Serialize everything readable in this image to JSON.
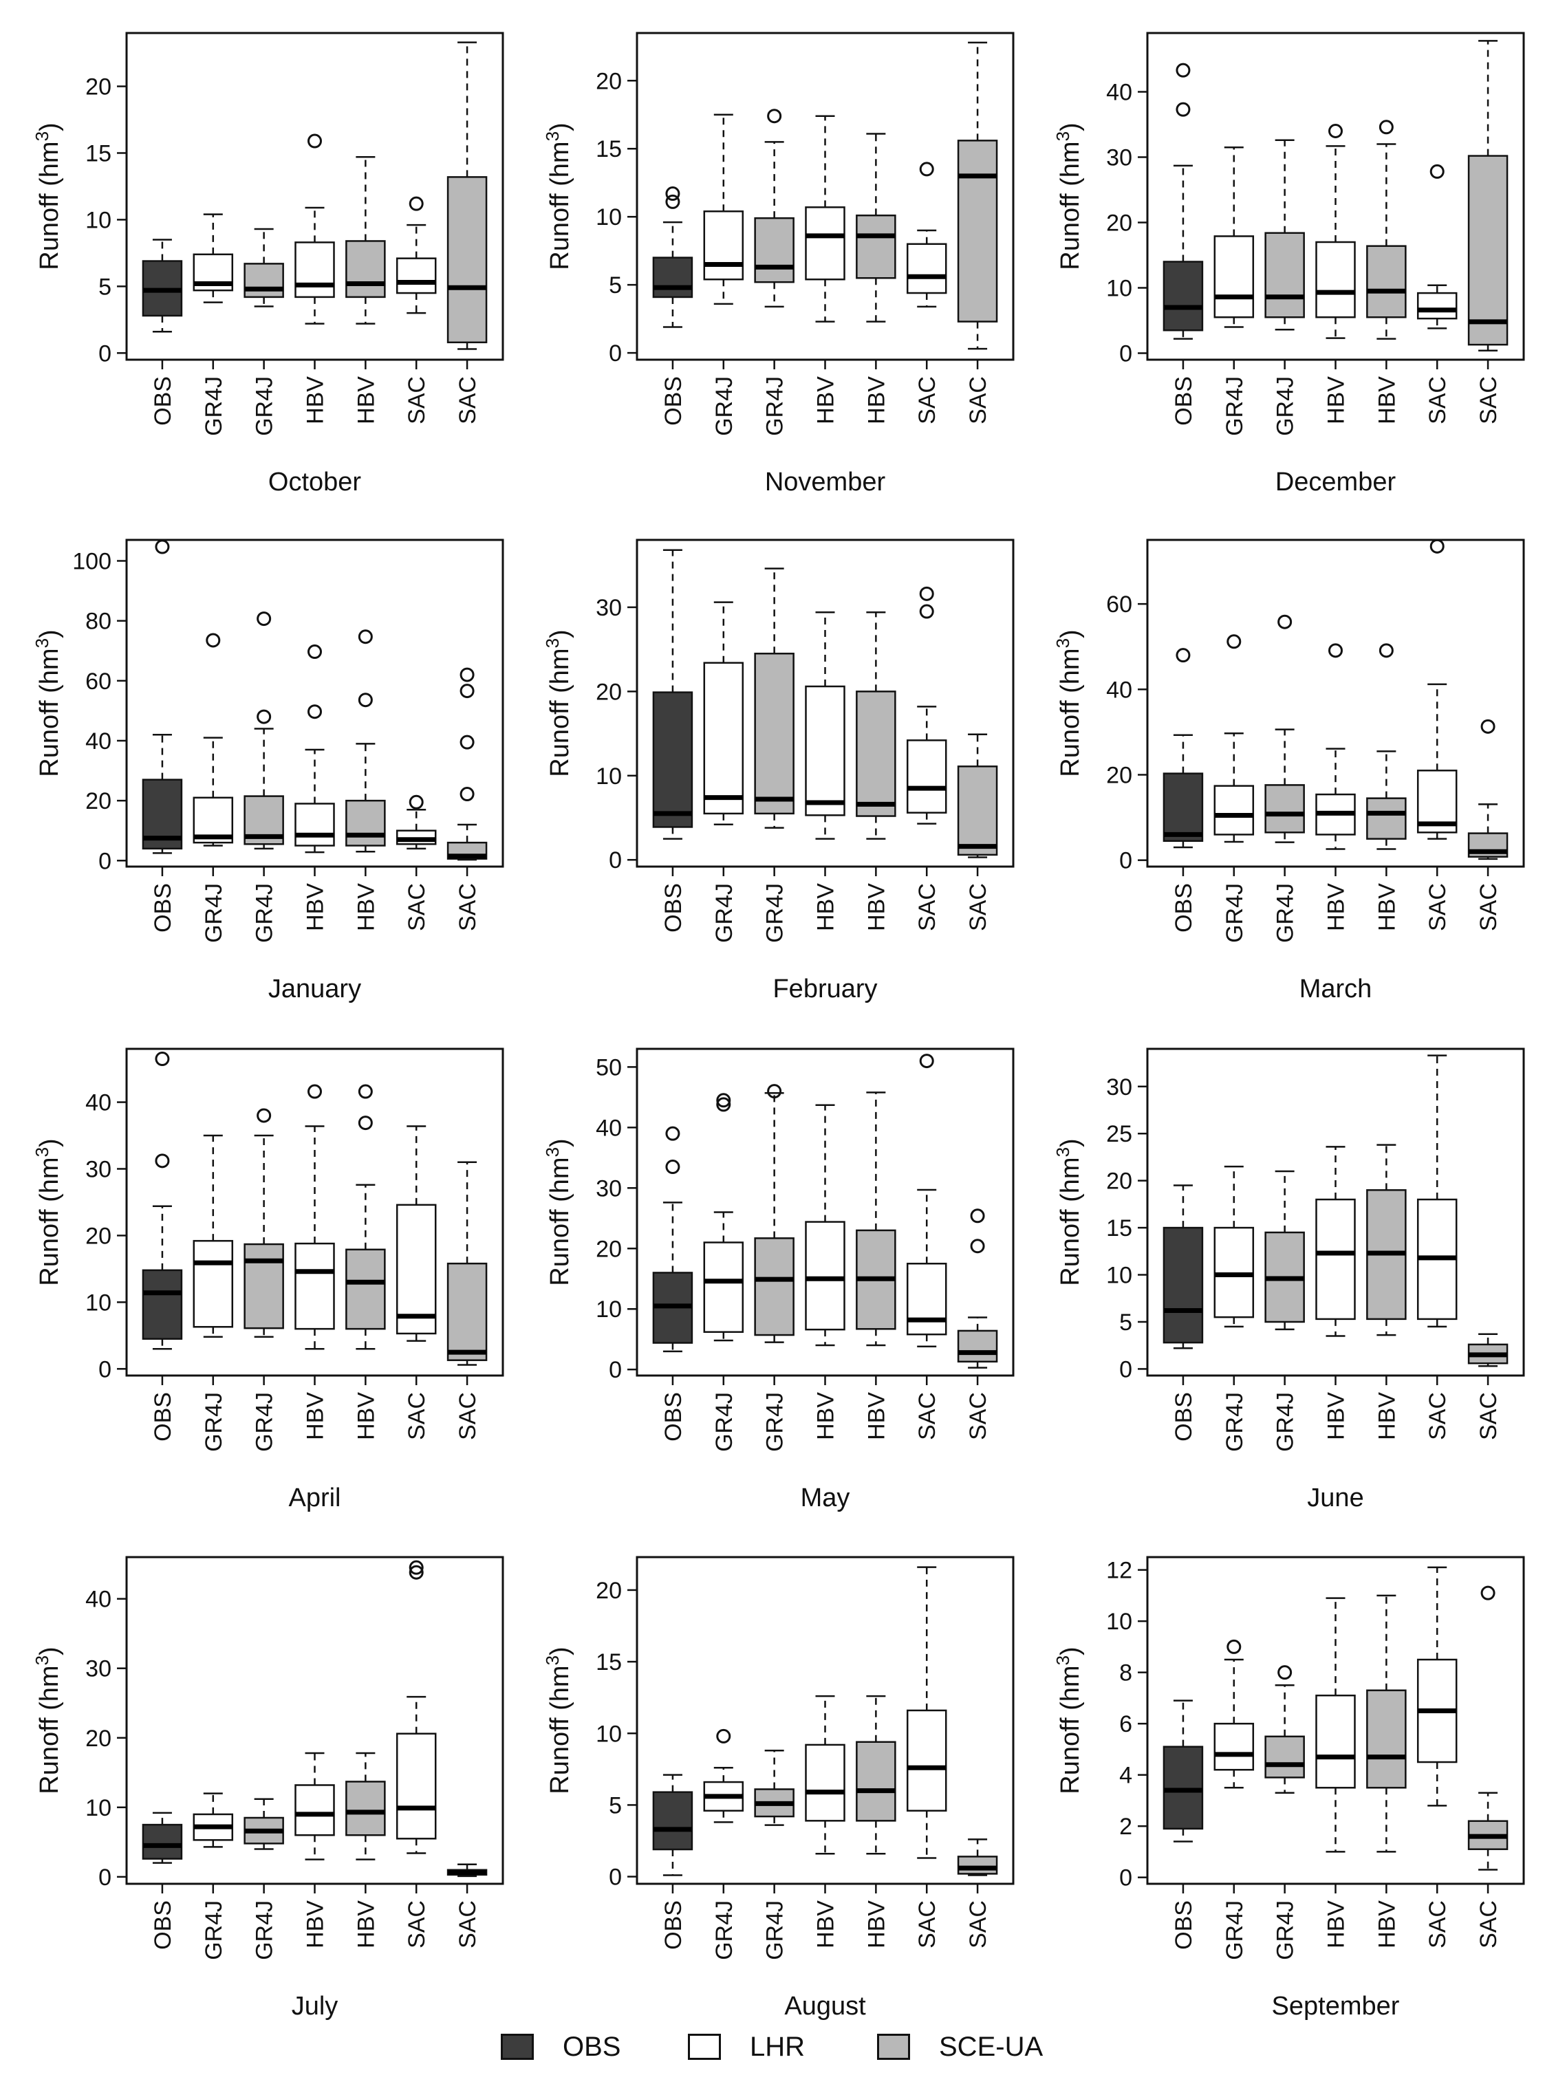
{
  "chart_data": {
    "type": "boxplot",
    "y_axis_label_prefix": "Runoff (hm",
    "y_axis_label_exp": "3",
    "y_axis_label_suffix": ")",
    "categories": [
      "OBS",
      "GR4J",
      "GR4J",
      "HBV",
      "HBV",
      "SAC",
      "SAC"
    ],
    "category_groups": [
      "OBS",
      "LHR",
      "SCE-UA",
      "LHR",
      "SCE-UA",
      "LHR",
      "SCE-UA"
    ],
    "colors": {
      "OBS": "#3d3d3d",
      "LHR": "#ffffff",
      "SCE-UA": "#b8b8b8"
    },
    "legend": [
      {
        "label": "OBS",
        "group": "OBS"
      },
      {
        "label": "LHR",
        "group": "LHR"
      },
      {
        "label": "SCE-UA",
        "group": "SCE-UA"
      }
    ],
    "panels": [
      {
        "title": "October",
        "ylim": [
          -0.5,
          24
        ],
        "yticks": [
          0,
          5,
          10,
          15,
          20
        ],
        "boxes": [
          {
            "min": 1.6,
            "q1": 2.8,
            "median": 4.7,
            "q3": 6.9,
            "max": 8.5,
            "outliers": []
          },
          {
            "min": 3.8,
            "q1": 4.7,
            "median": 5.2,
            "q3": 7.4,
            "max": 10.4,
            "outliers": []
          },
          {
            "min": 3.5,
            "q1": 4.2,
            "median": 4.8,
            "q3": 6.7,
            "max": 9.3,
            "outliers": []
          },
          {
            "min": 2.2,
            "q1": 4.2,
            "median": 5.1,
            "q3": 8.3,
            "max": 10.9,
            "outliers": [
              15.9
            ]
          },
          {
            "min": 2.2,
            "q1": 4.2,
            "median": 5.2,
            "q3": 8.4,
            "max": 14.7,
            "outliers": []
          },
          {
            "min": 3.0,
            "q1": 4.5,
            "median": 5.3,
            "q3": 7.1,
            "max": 9.6,
            "outliers": [
              11.2
            ]
          },
          {
            "min": 0.3,
            "q1": 0.8,
            "median": 4.9,
            "q3": 13.2,
            "max": 23.3,
            "outliers": []
          }
        ]
      },
      {
        "title": "November",
        "ylim": [
          -0.5,
          23.5
        ],
        "yticks": [
          0,
          5,
          10,
          15,
          20
        ],
        "boxes": [
          {
            "min": 1.9,
            "q1": 4.1,
            "median": 4.8,
            "q3": 7.0,
            "max": 9.6,
            "outliers": [
              11.1,
              11.7
            ]
          },
          {
            "min": 3.6,
            "q1": 5.4,
            "median": 6.5,
            "q3": 10.4,
            "max": 17.5,
            "outliers": []
          },
          {
            "min": 3.4,
            "q1": 5.2,
            "median": 6.3,
            "q3": 9.9,
            "max": 15.5,
            "outliers": [
              17.4
            ]
          },
          {
            "min": 2.3,
            "q1": 5.4,
            "median": 8.6,
            "q3": 10.7,
            "max": 17.4,
            "outliers": []
          },
          {
            "min": 2.3,
            "q1": 5.5,
            "median": 8.6,
            "q3": 10.1,
            "max": 16.1,
            "outliers": []
          },
          {
            "min": 3.4,
            "q1": 4.4,
            "median": 5.6,
            "q3": 8.0,
            "max": 9.0,
            "outliers": [
              13.5
            ]
          },
          {
            "min": 0.3,
            "q1": 2.3,
            "median": 13.0,
            "q3": 15.6,
            "max": 22.8,
            "outliers": []
          }
        ]
      },
      {
        "title": "December",
        "ylim": [
          -1,
          49
        ],
        "yticks": [
          0,
          10,
          20,
          30,
          40
        ],
        "boxes": [
          {
            "min": 2.2,
            "q1": 3.5,
            "median": 7.0,
            "q3": 14.0,
            "max": 28.7,
            "outliers": [
              37.3,
              43.3
            ]
          },
          {
            "min": 4.0,
            "q1": 5.5,
            "median": 8.6,
            "q3": 17.9,
            "max": 31.5,
            "outliers": []
          },
          {
            "min": 3.6,
            "q1": 5.5,
            "median": 8.6,
            "q3": 18.4,
            "max": 32.6,
            "outliers": []
          },
          {
            "min": 2.3,
            "q1": 5.5,
            "median": 9.3,
            "q3": 17.0,
            "max": 31.7,
            "outliers": [
              34.0
            ]
          },
          {
            "min": 2.2,
            "q1": 5.5,
            "median": 9.5,
            "q3": 16.4,
            "max": 32.0,
            "outliers": [
              34.6
            ]
          },
          {
            "min": 3.8,
            "q1": 5.3,
            "median": 6.6,
            "q3": 9.2,
            "max": 10.4,
            "outliers": [
              27.8
            ]
          },
          {
            "min": 0.4,
            "q1": 1.3,
            "median": 4.8,
            "q3": 30.2,
            "max": 47.8,
            "outliers": []
          }
        ]
      },
      {
        "title": "January",
        "ylim": [
          -2,
          107
        ],
        "yticks": [
          0,
          20,
          40,
          60,
          80,
          100
        ],
        "boxes": [
          {
            "min": 2.5,
            "q1": 4.0,
            "median": 7.5,
            "q3": 27.0,
            "max": 42.0,
            "outliers": [
              104.7
            ]
          },
          {
            "min": 5.0,
            "q1": 6.0,
            "median": 7.9,
            "q3": 21.0,
            "max": 41.0,
            "outliers": [
              73.5
            ]
          },
          {
            "min": 4.0,
            "q1": 5.5,
            "median": 8.0,
            "q3": 21.5,
            "max": 44.0,
            "outliers": [
              48.0,
              80.7
            ]
          },
          {
            "min": 2.8,
            "q1": 5.0,
            "median": 8.5,
            "q3": 19.0,
            "max": 37.0,
            "outliers": [
              49.7,
              69.7
            ]
          },
          {
            "min": 3.0,
            "q1": 5.0,
            "median": 8.5,
            "q3": 20.0,
            "max": 39.0,
            "outliers": [
              53.6,
              74.7
            ]
          },
          {
            "min": 4.0,
            "q1": 5.5,
            "median": 7.0,
            "q3": 10.0,
            "max": 17.0,
            "outliers": [
              19.5
            ]
          },
          {
            "min": 0.3,
            "q1": 0.6,
            "median": 1.5,
            "q3": 6.0,
            "max": 12.0,
            "outliers": [
              22.2,
              39.5,
              56.6,
              62.0
            ]
          }
        ]
      },
      {
        "title": "February",
        "ylim": [
          -0.8,
          38
        ],
        "yticks": [
          0,
          10,
          20,
          30
        ],
        "boxes": [
          {
            "min": 2.5,
            "q1": 3.9,
            "median": 5.5,
            "q3": 19.9,
            "max": 36.8,
            "outliers": []
          },
          {
            "min": 4.2,
            "q1": 5.5,
            "median": 7.4,
            "q3": 23.4,
            "max": 30.6,
            "outliers": []
          },
          {
            "min": 3.8,
            "q1": 5.5,
            "median": 7.2,
            "q3": 24.5,
            "max": 34.6,
            "outliers": []
          },
          {
            "min": 2.5,
            "q1": 5.3,
            "median": 6.8,
            "q3": 20.6,
            "max": 29.4,
            "outliers": []
          },
          {
            "min": 2.5,
            "q1": 5.2,
            "median": 6.6,
            "q3": 20.0,
            "max": 29.4,
            "outliers": []
          },
          {
            "min": 4.3,
            "q1": 5.6,
            "median": 8.5,
            "q3": 14.2,
            "max": 18.2,
            "outliers": [
              29.5,
              31.6
            ]
          },
          {
            "min": 0.3,
            "q1": 0.6,
            "median": 1.6,
            "q3": 11.1,
            "max": 14.9,
            "outliers": []
          }
        ]
      },
      {
        "title": "March",
        "ylim": [
          -1.5,
          75
        ],
        "yticks": [
          0,
          20,
          40,
          60
        ],
        "boxes": [
          {
            "min": 3.0,
            "q1": 4.5,
            "median": 6.0,
            "q3": 20.3,
            "max": 29.3,
            "outliers": [
              48.0
            ]
          },
          {
            "min": 4.3,
            "q1": 6.0,
            "median": 10.5,
            "q3": 17.4,
            "max": 29.7,
            "outliers": [
              51.2
            ]
          },
          {
            "min": 4.2,
            "q1": 6.5,
            "median": 10.8,
            "q3": 17.6,
            "max": 30.6,
            "outliers": [
              55.8
            ]
          },
          {
            "min": 2.6,
            "q1": 6.0,
            "median": 11.0,
            "q3": 15.4,
            "max": 26.1,
            "outliers": [
              49.1
            ]
          },
          {
            "min": 2.6,
            "q1": 5.0,
            "median": 11.0,
            "q3": 14.5,
            "max": 25.5,
            "outliers": [
              49.1
            ]
          },
          {
            "min": 5.0,
            "q1": 6.5,
            "median": 8.5,
            "q3": 21.0,
            "max": 41.2,
            "outliers": [
              73.5
            ]
          },
          {
            "min": 0.3,
            "q1": 0.8,
            "median": 2.0,
            "q3": 6.3,
            "max": 13.1,
            "outliers": [
              31.3
            ]
          }
        ]
      },
      {
        "title": "April",
        "ylim": [
          -1,
          48
        ],
        "yticks": [
          0,
          10,
          20,
          30,
          40
        ],
        "boxes": [
          {
            "min": 3.0,
            "q1": 4.5,
            "median": 11.4,
            "q3": 14.8,
            "max": 24.4,
            "outliers": [
              31.2,
              46.5
            ]
          },
          {
            "min": 4.8,
            "q1": 6.3,
            "median": 15.9,
            "q3": 19.2,
            "max": 35.0,
            "outliers": []
          },
          {
            "min": 4.8,
            "q1": 6.1,
            "median": 16.2,
            "q3": 18.7,
            "max": 35.0,
            "outliers": [
              38.0
            ]
          },
          {
            "min": 3.0,
            "q1": 6.0,
            "median": 14.6,
            "q3": 18.8,
            "max": 36.4,
            "outliers": [
              41.6
            ]
          },
          {
            "min": 3.0,
            "q1": 6.0,
            "median": 13.0,
            "q3": 17.9,
            "max": 27.6,
            "outliers": [
              36.9,
              41.6
            ]
          },
          {
            "min": 4.2,
            "q1": 5.3,
            "median": 7.9,
            "q3": 24.6,
            "max": 36.4,
            "outliers": []
          },
          {
            "min": 0.6,
            "q1": 1.3,
            "median": 2.5,
            "q3": 15.8,
            "max": 31.0,
            "outliers": []
          }
        ]
      },
      {
        "title": "May",
        "ylim": [
          -1,
          53
        ],
        "yticks": [
          0,
          10,
          20,
          30,
          40,
          50
        ],
        "boxes": [
          {
            "min": 3.0,
            "q1": 4.4,
            "median": 10.5,
            "q3": 16.0,
            "max": 27.6,
            "outliers": [
              33.5,
              39.0
            ]
          },
          {
            "min": 4.8,
            "q1": 6.2,
            "median": 14.6,
            "q3": 21.0,
            "max": 26.0,
            "outliers": [
              43.8,
              44.5
            ]
          },
          {
            "min": 4.5,
            "q1": 5.7,
            "median": 14.9,
            "q3": 21.7,
            "max": 45.7,
            "outliers": [
              46.0
            ]
          },
          {
            "min": 4.0,
            "q1": 6.6,
            "median": 15.0,
            "q3": 24.4,
            "max": 43.7,
            "outliers": []
          },
          {
            "min": 4.0,
            "q1": 6.7,
            "median": 15.0,
            "q3": 23.0,
            "max": 45.8,
            "outliers": []
          },
          {
            "min": 3.8,
            "q1": 5.8,
            "median": 8.2,
            "q3": 17.5,
            "max": 29.7,
            "outliers": [
              51.0
            ]
          },
          {
            "min": 0.3,
            "q1": 1.3,
            "median": 2.8,
            "q3": 6.4,
            "max": 8.6,
            "outliers": [
              20.4,
              25.4
            ]
          }
        ]
      },
      {
        "title": "June",
        "ylim": [
          -0.7,
          34
        ],
        "yticks": [
          0,
          5,
          10,
          15,
          20,
          25,
          30
        ],
        "boxes": [
          {
            "min": 2.2,
            "q1": 2.8,
            "median": 6.2,
            "q3": 15.0,
            "max": 19.5,
            "outliers": []
          },
          {
            "min": 4.5,
            "q1": 5.5,
            "median": 10.0,
            "q3": 15.0,
            "max": 21.5,
            "outliers": []
          },
          {
            "min": 4.2,
            "q1": 5.0,
            "median": 9.6,
            "q3": 14.5,
            "max": 21.0,
            "outliers": []
          },
          {
            "min": 3.5,
            "q1": 5.3,
            "median": 12.3,
            "q3": 18.0,
            "max": 23.6,
            "outliers": []
          },
          {
            "min": 3.6,
            "q1": 5.3,
            "median": 12.3,
            "q3": 19.0,
            "max": 23.8,
            "outliers": []
          },
          {
            "min": 4.5,
            "q1": 5.3,
            "median": 11.8,
            "q3": 18.0,
            "max": 33.3,
            "outliers": []
          },
          {
            "min": 0.3,
            "q1": 0.6,
            "median": 1.5,
            "q3": 2.6,
            "max": 3.7,
            "outliers": []
          }
        ]
      },
      {
        "title": "July",
        "ylim": [
          -1,
          46
        ],
        "yticks": [
          0,
          10,
          20,
          30,
          40
        ],
        "boxes": [
          {
            "min": 2.0,
            "q1": 2.6,
            "median": 4.5,
            "q3": 7.5,
            "max": 9.2,
            "outliers": []
          },
          {
            "min": 4.3,
            "q1": 5.3,
            "median": 7.2,
            "q3": 9.0,
            "max": 12.0,
            "outliers": []
          },
          {
            "min": 4.0,
            "q1": 4.8,
            "median": 6.6,
            "q3": 8.5,
            "max": 11.2,
            "outliers": []
          },
          {
            "min": 2.5,
            "q1": 6.0,
            "median": 9.0,
            "q3": 13.2,
            "max": 17.8,
            "outliers": []
          },
          {
            "min": 2.5,
            "q1": 6.0,
            "median": 9.3,
            "q3": 13.7,
            "max": 17.8,
            "outliers": []
          },
          {
            "min": 3.4,
            "q1": 5.5,
            "median": 9.9,
            "q3": 20.6,
            "max": 25.9,
            "outliers": [
              43.8,
              44.5
            ]
          },
          {
            "min": 0.1,
            "q1": 0.3,
            "median": 0.6,
            "q3": 1.0,
            "max": 1.8,
            "outliers": []
          }
        ]
      },
      {
        "title": "August",
        "ylim": [
          -0.5,
          22.3
        ],
        "yticks": [
          0,
          5,
          10,
          15,
          20
        ],
        "boxes": [
          {
            "min": 0.1,
            "q1": 1.9,
            "median": 3.3,
            "q3": 5.9,
            "max": 7.1,
            "outliers": []
          },
          {
            "min": 3.8,
            "q1": 4.6,
            "median": 5.6,
            "q3": 6.6,
            "max": 7.6,
            "outliers": [
              9.8
            ]
          },
          {
            "min": 3.6,
            "q1": 4.2,
            "median": 5.1,
            "q3": 6.1,
            "max": 8.8,
            "outliers": []
          },
          {
            "min": 1.6,
            "q1": 3.9,
            "median": 5.9,
            "q3": 9.2,
            "max": 12.6,
            "outliers": []
          },
          {
            "min": 1.6,
            "q1": 3.9,
            "median": 6.0,
            "q3": 9.4,
            "max": 12.6,
            "outliers": []
          },
          {
            "min": 1.3,
            "q1": 4.6,
            "median": 7.6,
            "q3": 11.6,
            "max": 21.6,
            "outliers": []
          },
          {
            "min": 0.1,
            "q1": 0.2,
            "median": 0.6,
            "q3": 1.4,
            "max": 2.6,
            "outliers": []
          }
        ]
      },
      {
        "title": "September",
        "ylim": [
          -0.25,
          12.5
        ],
        "yticks": [
          0,
          2,
          4,
          6,
          8,
          10,
          12
        ],
        "boxes": [
          {
            "min": 1.4,
            "q1": 1.9,
            "median": 3.4,
            "q3": 5.1,
            "max": 6.9,
            "outliers": []
          },
          {
            "min": 3.5,
            "q1": 4.2,
            "median": 4.8,
            "q3": 6.0,
            "max": 8.5,
            "outliers": [
              9.0
            ]
          },
          {
            "min": 3.3,
            "q1": 3.9,
            "median": 4.4,
            "q3": 5.5,
            "max": 7.5,
            "outliers": [
              8.0
            ]
          },
          {
            "min": 1.0,
            "q1": 3.5,
            "median": 4.7,
            "q3": 7.1,
            "max": 10.9,
            "outliers": []
          },
          {
            "min": 1.0,
            "q1": 3.5,
            "median": 4.7,
            "q3": 7.3,
            "max": 11.0,
            "outliers": []
          },
          {
            "min": 2.8,
            "q1": 4.5,
            "median": 6.5,
            "q3": 8.5,
            "max": 12.1,
            "outliers": []
          },
          {
            "min": 0.3,
            "q1": 1.1,
            "median": 1.6,
            "q3": 2.2,
            "max": 3.3,
            "outliers": [
              11.1
            ]
          }
        ]
      }
    ]
  }
}
